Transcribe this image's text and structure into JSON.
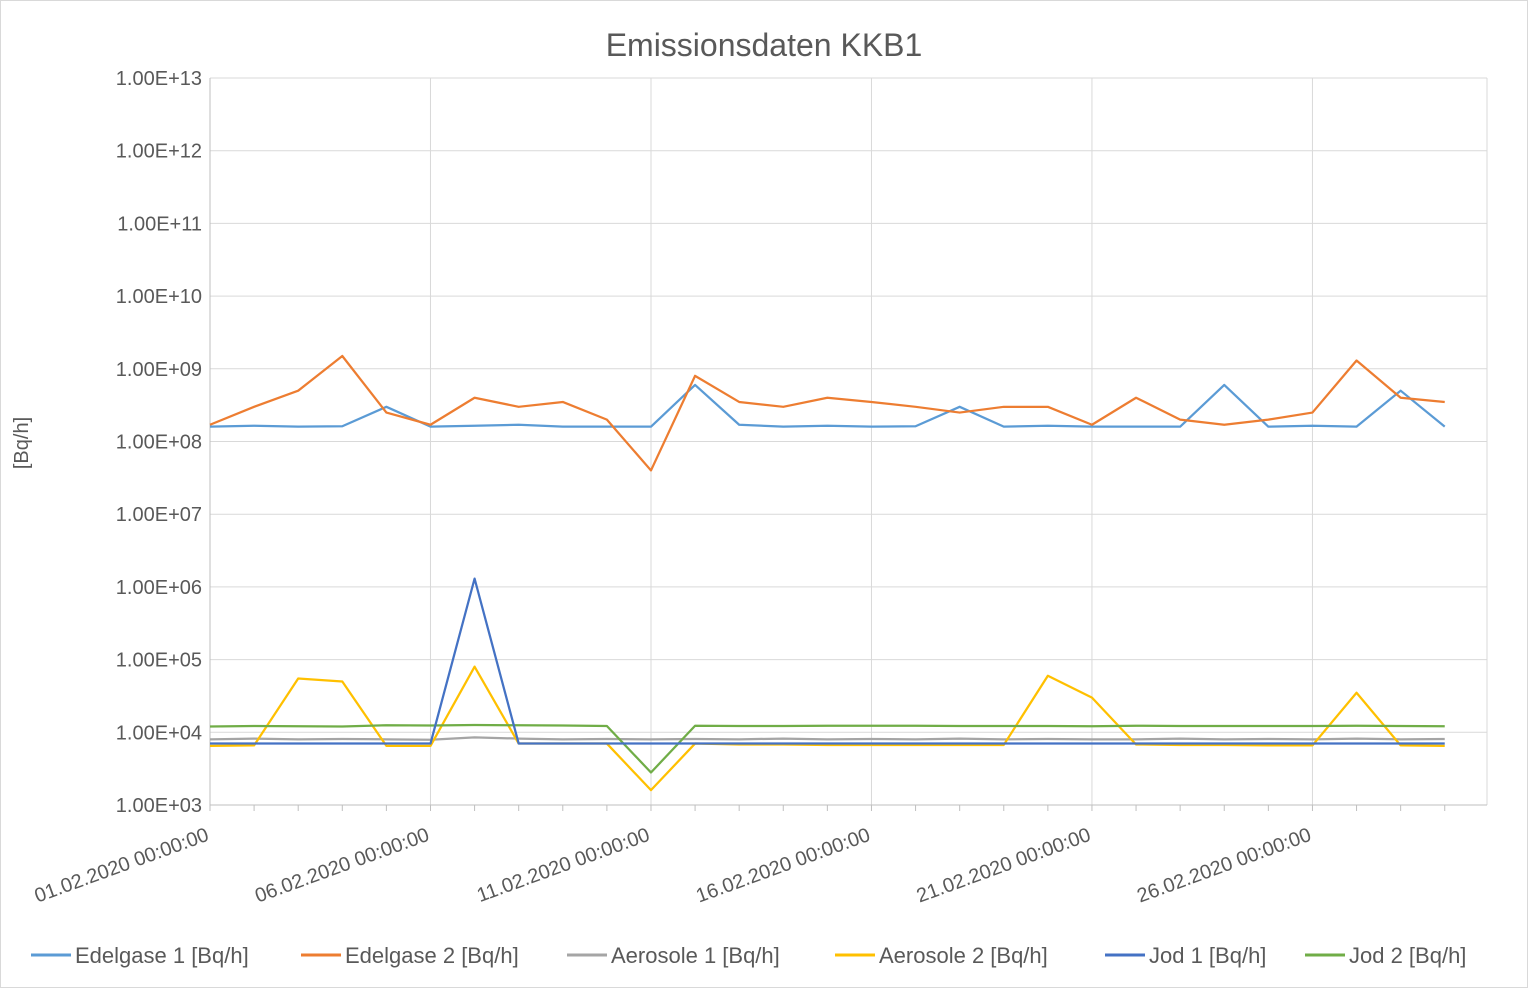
{
  "chart_data": {
    "type": "line",
    "title": "Emissionsdaten KKB1",
    "ylabel": "[Bq/h]",
    "xlabel": "",
    "yscale": "log",
    "ylim": [
      1000,
      10000000000000
    ],
    "yticks": [
      "1.00E+03",
      "1.00E+04",
      "1.00E+05",
      "1.00E+06",
      "1.00E+07",
      "1.00E+08",
      "1.00E+09",
      "1.00E+10",
      "1.00E+11",
      "1.00E+12",
      "1.00E+13"
    ],
    "xlim": [
      "01.02.2020 00:00:00",
      "29.02.2020 23:00:00"
    ],
    "xticks": [
      "01.02.2020 00:00:00",
      "06.02.2020 00:00:00",
      "11.02.2020 00:00:00",
      "16.02.2020 00:00:00",
      "21.02.2020 00:00:00",
      "26.02.2020 00:00:00"
    ],
    "grid": true,
    "legend_position": "bottom",
    "x": [
      "01.02.2020 00:00:00",
      "02.02.2020 00:00:00",
      "03.02.2020 00:00:00",
      "04.02.2020 00:00:00",
      "05.02.2020 00:00:00",
      "06.02.2020 00:00:00",
      "07.02.2020 00:00:00",
      "08.02.2020 00:00:00",
      "09.02.2020 00:00:00",
      "10.02.2020 00:00:00",
      "11.02.2020 00:00:00",
      "12.02.2020 00:00:00",
      "13.02.2020 00:00:00",
      "14.02.2020 00:00:00",
      "15.02.2020 00:00:00",
      "16.02.2020 00:00:00",
      "17.02.2020 00:00:00",
      "18.02.2020 00:00:00",
      "19.02.2020 00:00:00",
      "20.02.2020 00:00:00",
      "21.02.2020 00:00:00",
      "22.02.2020 00:00:00",
      "23.02.2020 00:00:00",
      "24.02.2020 00:00:00",
      "25.02.2020 00:00:00",
      "26.02.2020 00:00:00",
      "27.02.2020 00:00:00",
      "28.02.2020 00:00:00",
      "29.02.2020 00:00:00"
    ],
    "series": [
      {
        "name": "Edelgase 1 [Bq/h]",
        "color": "#5B9BD5",
        "values": [
          160000000,
          165000000,
          160000000,
          162000000,
          300000000,
          160000000,
          165000000,
          170000000,
          160000000,
          160000000,
          160000000,
          600000000,
          170000000,
          160000000,
          165000000,
          160000000,
          162000000,
          300000000,
          160000000,
          165000000,
          160000000,
          160000000,
          160000000,
          600000000,
          160000000,
          165000000,
          160000000,
          500000000,
          160000000
        ]
      },
      {
        "name": "Edelgase 2 [Bq/h]",
        "color": "#ED7D31",
        "values": [
          170000000,
          300000000,
          500000000,
          1500000000,
          250000000,
          170000000,
          400000000,
          300000000,
          350000000,
          200000000,
          40000000,
          800000000,
          350000000,
          300000000,
          400000000,
          350000000,
          300000000,
          250000000,
          300000000,
          300000000,
          170000000,
          400000000,
          200000000,
          170000000,
          200000000,
          250000000,
          1300000000,
          400000000,
          350000000
        ]
      },
      {
        "name": "Aerosole 1 [Bq/h]",
        "color": "#A5A5A5",
        "values": [
          8000,
          8200,
          8000,
          8100,
          8000,
          7900,
          8500,
          8200,
          8000,
          8100,
          8000,
          8100,
          8000,
          8200,
          8000,
          8100,
          8000,
          8200,
          8000,
          8100,
          8000,
          8000,
          8200,
          8000,
          8100,
          8000,
          8200,
          8000,
          8100
        ]
      },
      {
        "name": "Aerosole 2 [Bq/h]",
        "color": "#FFC000",
        "values": [
          6500,
          6600,
          55000,
          50000,
          6500,
          6500,
          80000,
          7000,
          7000,
          7000,
          1600,
          7000,
          6800,
          6800,
          6700,
          6700,
          6700,
          6700,
          6700,
          60000,
          30000,
          6800,
          6700,
          6700,
          6600,
          6600,
          35000,
          6600,
          6500
        ]
      },
      {
        "name": "Jod 1 [Bq/h]",
        "color": "#4472C4",
        "values": [
          7000,
          7000,
          7000,
          7000,
          7000,
          7000,
          1300000,
          7000,
          7000,
          7000,
          7000,
          7000,
          7000,
          7000,
          7000,
          7000,
          7000,
          7000,
          7000,
          7000,
          7000,
          7000,
          7000,
          7000,
          7000,
          7000,
          7000,
          7000,
          7000
        ]
      },
      {
        "name": "Jod 2 [Bq/h]",
        "color": "#70AD47",
        "values": [
          12000,
          12200,
          12100,
          12000,
          12500,
          12400,
          12600,
          12500,
          12400,
          12200,
          2800,
          12300,
          12200,
          12200,
          12300,
          12300,
          12300,
          12200,
          12200,
          12200,
          12100,
          12300,
          12200,
          12200,
          12200,
          12200,
          12300,
          12200,
          12100
        ]
      }
    ]
  }
}
